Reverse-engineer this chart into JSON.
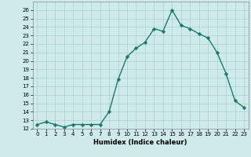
{
  "x": [
    0,
    1,
    2,
    3,
    4,
    5,
    6,
    7,
    8,
    9,
    10,
    11,
    12,
    13,
    14,
    15,
    16,
    17,
    18,
    19,
    20,
    21,
    22,
    23
  ],
  "y": [
    12.5,
    12.8,
    12.5,
    12.2,
    12.5,
    12.5,
    12.5,
    12.5,
    14.0,
    17.8,
    20.5,
    21.5,
    22.2,
    23.8,
    23.5,
    26.0,
    24.2,
    23.8,
    23.2,
    22.7,
    21.0,
    18.5,
    15.3,
    14.5
  ],
  "xlabel": "Humidex (Indice chaleur)",
  "xlim": [
    -0.5,
    23.5
  ],
  "ylim": [
    12,
    27
  ],
  "yticks": [
    12,
    13,
    14,
    15,
    16,
    17,
    18,
    19,
    20,
    21,
    22,
    23,
    24,
    25,
    26
  ],
  "xticks": [
    0,
    1,
    2,
    3,
    4,
    5,
    6,
    7,
    8,
    9,
    10,
    11,
    12,
    13,
    14,
    15,
    16,
    17,
    18,
    19,
    20,
    21,
    22,
    23
  ],
  "line_color": "#1a7a6e",
  "marker_color": "#1a7a6e",
  "bg_color": "#ceeaea",
  "grid_color": "#aed0d0",
  "spine_color": "#888888"
}
